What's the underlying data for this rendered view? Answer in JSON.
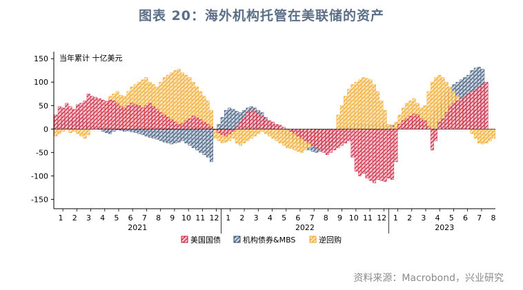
{
  "title": "图表 20：海外机构托管在美联储的资产",
  "unit_label": "当年累计  十亿美元",
  "source": "资料来源：Macrobond，兴业研究",
  "colors": {
    "treasury": "#c8102e",
    "agency": "#2e4a6b",
    "repo": "#f0a020"
  },
  "chart_data": {
    "type": "bar",
    "title": "图表 20：海外机构托管在美联储的资产",
    "ylabel": "当年累计  十亿美元",
    "ylim": [
      -170,
      165
    ],
    "yticks": [
      150,
      100,
      50,
      0,
      -50,
      -100,
      -150
    ],
    "grid": false,
    "legend_position": "bottom",
    "month_labels": [
      "1",
      "2",
      "3",
      "4",
      "5",
      "6",
      "7",
      "8",
      "9",
      "10",
      "11",
      "12",
      "1",
      "2",
      "3",
      "4",
      "5",
      "6",
      "7",
      "8",
      "9",
      "10",
      "11",
      "12",
      "1",
      "2",
      "3",
      "4",
      "5",
      "6",
      "7",
      "8"
    ],
    "year_labels": [
      "2021",
      "2022",
      "2023"
    ],
    "series": [
      {
        "name": "美国国债",
        "values": [
          30,
          48,
          45,
          55,
          48,
          42,
          52,
          55,
          60,
          75,
          70,
          68,
          65,
          62,
          58,
          62,
          60,
          55,
          48,
          45,
          50,
          55,
          52,
          50,
          45,
          50,
          55,
          48,
          42,
          35,
          30,
          25,
          20,
          15,
          10,
          12,
          18,
          22,
          28,
          24,
          20,
          15,
          10,
          5,
          -2,
          -8,
          -12,
          -15,
          -10,
          -5,
          5,
          15,
          25,
          35,
          40,
          38,
          32,
          28,
          22,
          18,
          15,
          10,
          8,
          4,
          0,
          -5,
          -10,
          -15,
          -20,
          -25,
          -30,
          -35,
          -40,
          -45,
          -50,
          -55,
          -50,
          -45,
          -40,
          -35,
          -30,
          -25,
          -60,
          -90,
          -100,
          -95,
          -105,
          -110,
          -115,
          -108,
          -110,
          -112,
          -105,
          -108,
          -70,
          10,
          18,
          22,
          28,
          32,
          30,
          22,
          18,
          5,
          -45,
          -25,
          15,
          22,
          35,
          48,
          55,
          60,
          65,
          70,
          75,
          80,
          85,
          90,
          95,
          100
        ],
        "colors_key": "treasury"
      },
      {
        "name": "机构债券&MBS",
        "values": [
          10,
          15,
          20,
          25,
          22,
          20,
          28,
          30,
          25,
          15,
          10,
          5,
          0,
          -5,
          -8,
          -10,
          -5,
          -2,
          -3,
          -5,
          -4,
          -6,
          -8,
          -10,
          -12,
          -15,
          -18,
          -20,
          -22,
          -25,
          -28,
          -30,
          -32,
          -30,
          -28,
          -25,
          -30,
          -35,
          -40,
          -45,
          -50,
          -55,
          -60,
          -70,
          -5,
          10,
          25,
          40,
          45,
          42,
          38,
          35,
          40,
          45,
          48,
          45,
          40,
          35,
          25,
          15,
          10,
          5,
          -8,
          -10,
          -15,
          -20,
          -25,
          -30,
          -35,
          -40,
          -45,
          -48,
          -50,
          -48,
          -45,
          -40,
          -35,
          -30,
          2,
          4,
          6,
          8,
          10,
          12,
          12,
          12,
          10,
          10,
          11,
          12,
          12,
          12,
          5,
          8,
          10,
          12,
          15,
          18,
          20,
          22,
          20,
          15,
          10,
          15,
          25,
          40,
          55,
          70,
          80,
          88,
          95,
          100,
          105,
          110,
          115,
          125,
          130,
          132,
          128
        ],
        "colors_key": "agency"
      },
      {
        "name": "逆回购",
        "values": [
          -15,
          -10,
          -5,
          0,
          -8,
          -5,
          -10,
          -15,
          -20,
          -12,
          0,
          5,
          30,
          45,
          60,
          70,
          75,
          80,
          72,
          70,
          80,
          90,
          95,
          100,
          105,
          110,
          100,
          95,
          90,
          100,
          110,
          115,
          120,
          125,
          128,
          120,
          115,
          110,
          100,
          90,
          80,
          70,
          60,
          40,
          -20,
          -25,
          -30,
          -28,
          -25,
          -20,
          -30,
          -35,
          -30,
          -25,
          -20,
          -15,
          -10,
          -5,
          -10,
          -15,
          -20,
          -25,
          -30,
          -35,
          -40,
          -42,
          -45,
          -48,
          -50,
          -45,
          -40,
          -35,
          -30,
          -25,
          -20,
          -15,
          -10,
          -5,
          30,
          50,
          70,
          85,
          95,
          100,
          105,
          110,
          108,
          105,
          95,
          80,
          60,
          40,
          10,
          5,
          15,
          30,
          45,
          55,
          60,
          65,
          55,
          45,
          50,
          80,
          100,
          110,
          115,
          110,
          100,
          90,
          80,
          70,
          50,
          30,
          10,
          -10,
          -20,
          -30,
          -32,
          -30,
          -25,
          -20
        ],
        "colors_key": "repo"
      }
    ]
  }
}
